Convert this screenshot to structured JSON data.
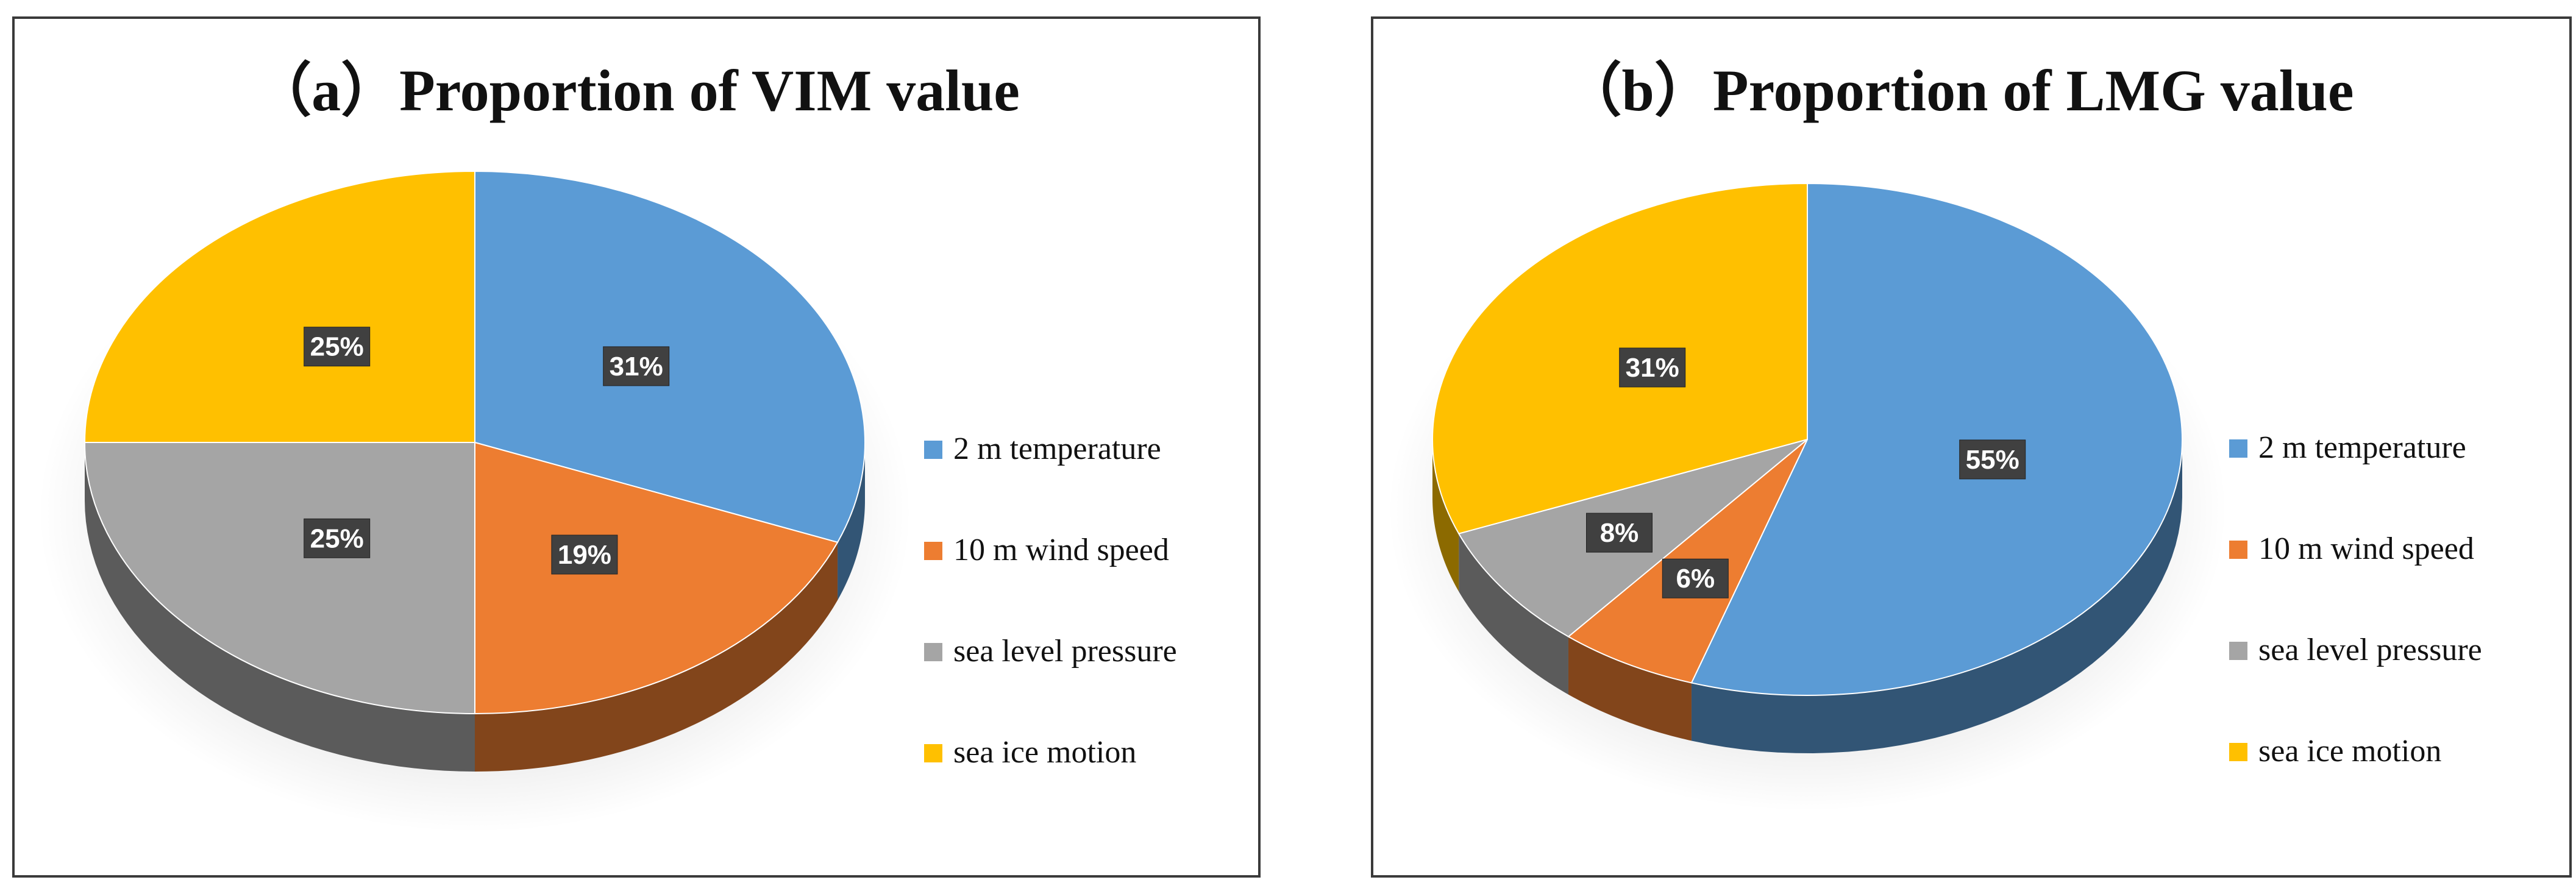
{
  "chart_data": [
    {
      "type": "pie",
      "title": "（a）Proportion of VIM value",
      "categories": [
        "2 m temperature",
        "10 m wind speed",
        "sea level pressure",
        "sea ice motion"
      ],
      "values": [
        31,
        19,
        25,
        25
      ],
      "data_labels": [
        "31%",
        "19%",
        "25%",
        "25%"
      ],
      "colors": [
        "#5B9BD5",
        "#ED7D31",
        "#A5A5A5",
        "#FFC000"
      ],
      "legend": "right",
      "style": "3d"
    },
    {
      "type": "pie",
      "title": "（b）Proportion of LMG value",
      "categories": [
        "2 m temperature",
        "10 m wind speed",
        "sea level pressure",
        "sea ice motion"
      ],
      "values": [
        55,
        6,
        8,
        31
      ],
      "data_labels": [
        "55%",
        "6%",
        "8%",
        "31%"
      ],
      "colors": [
        "#5B9BD5",
        "#ED7D31",
        "#A5A5A5",
        "#FFC000"
      ],
      "legend": "right",
      "style": "3d"
    }
  ]
}
